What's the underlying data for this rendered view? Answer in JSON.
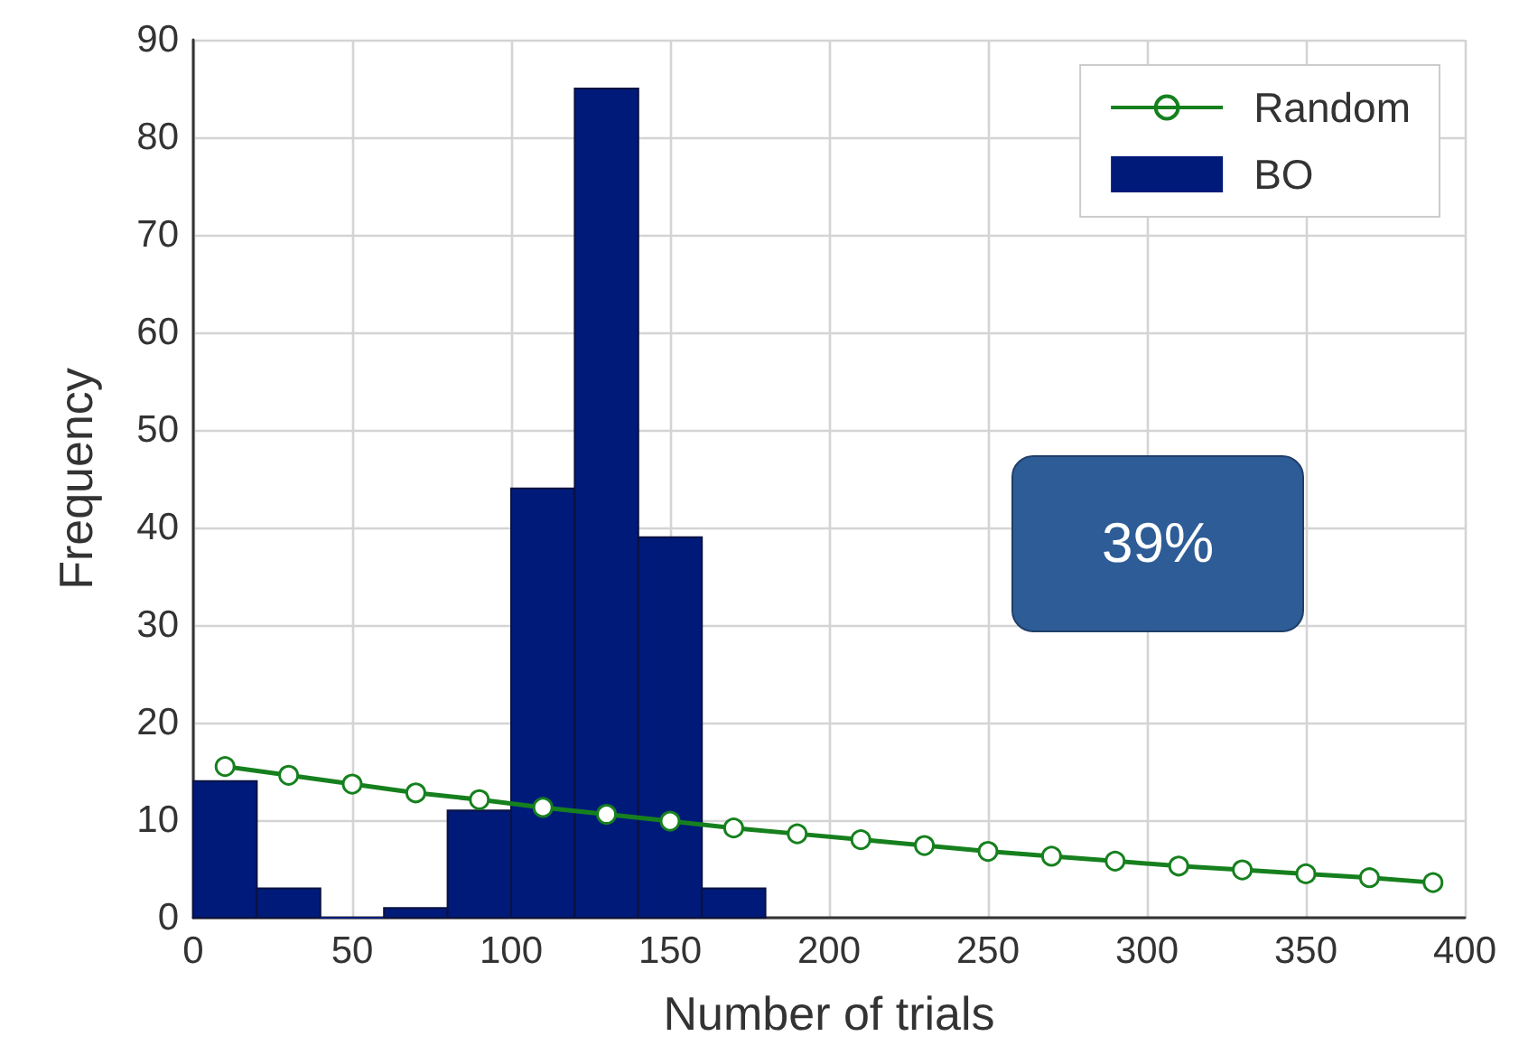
{
  "chart_data": {
    "type": "histogram",
    "xlabel": "Number of trials",
    "ylabel": "Frequency",
    "bins": [
      0,
      20,
      40,
      60,
      80,
      100,
      120,
      140,
      160,
      180
    ],
    "series": [
      {
        "name": "Random",
        "type": "line",
        "color": "#16801e",
        "marker": "circle",
        "x": [
          10,
          30,
          50,
          70,
          90,
          110,
          130,
          150,
          170,
          190,
          210,
          230,
          250,
          270,
          290,
          310,
          330,
          350,
          370,
          390
        ],
        "values": [
          15.5,
          14.6,
          13.7,
          12.8,
          12.1,
          11.3,
          10.6,
          9.9,
          9.2,
          8.6,
          8.0,
          7.4,
          6.8,
          6.3,
          5.8,
          5.3,
          4.9,
          4.5,
          4.1,
          3.6
        ]
      },
      {
        "name": "BO",
        "color": "#001a7a",
        "values": [
          14,
          3,
          0,
          1,
          11,
          44,
          85,
          39,
          3
        ]
      }
    ],
    "xlim": [
      0,
      400
    ],
    "xticks": [
      0,
      50,
      100,
      150,
      200,
      250,
      300,
      350,
      400
    ],
    "ylim": [
      0,
      90
    ],
    "yticks": [
      0,
      10,
      20,
      30,
      40,
      50,
      60,
      70,
      80,
      90
    ],
    "grid": true,
    "legend": "top right",
    "annotations": [
      "39%"
    ]
  }
}
